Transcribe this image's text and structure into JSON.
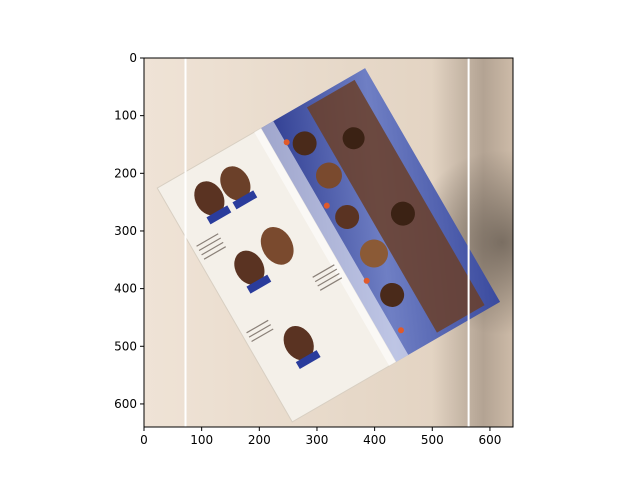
{
  "chart_data": {
    "type": "image",
    "image_width": 640,
    "image_height": 640,
    "xlim": [
      0,
      640
    ],
    "ylim": [
      640,
      0
    ],
    "y_inverted": true,
    "xticks": [
      0,
      100,
      200,
      300,
      400,
      500,
      600
    ],
    "yticks": [
      0,
      100,
      200,
      300,
      400,
      500,
      600
    ],
    "vertical_lines": [
      72,
      563
    ],
    "vertical_line_color": "#ffffff",
    "grid": false,
    "title": "",
    "xlabel": "",
    "ylabel": ""
  },
  "colors": {
    "background": "#e9ddd0",
    "page": "#f3efe7",
    "spread": "#3a4fa6",
    "chocolate": "#5a3322",
    "foil": "#2a3c9c",
    "shadow": "#b8a797"
  }
}
